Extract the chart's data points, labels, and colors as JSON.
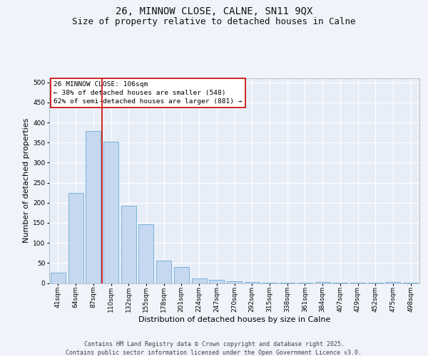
{
  "title_line1": "26, MINNOW CLOSE, CALNE, SN11 9QX",
  "title_line2": "Size of property relative to detached houses in Calne",
  "xlabel": "Distribution of detached houses by size in Calne",
  "ylabel": "Number of detached properties",
  "categories": [
    "41sqm",
    "64sqm",
    "87sqm",
    "110sqm",
    "132sqm",
    "155sqm",
    "178sqm",
    "201sqm",
    "224sqm",
    "247sqm",
    "270sqm",
    "292sqm",
    "315sqm",
    "338sqm",
    "361sqm",
    "384sqm",
    "407sqm",
    "429sqm",
    "452sqm",
    "475sqm",
    "498sqm"
  ],
  "values": [
    25,
    225,
    378,
    352,
    193,
    146,
    55,
    40,
    12,
    8,
    5,
    3,
    1,
    1,
    1,
    3,
    1,
    1,
    1,
    3,
    1
  ],
  "bar_color": "#c5d8f0",
  "bar_edgecolor": "#6aaad4",
  "bar_linewidth": 0.6,
  "vline_index": 3,
  "vline_color": "#cc0000",
  "vline_linewidth": 1.2,
  "annotation_line1": "26 MINNOW CLOSE: 106sqm",
  "annotation_line2": "← 38% of detached houses are smaller (548)",
  "annotation_line3": "62% of semi-detached houses are larger (881) →",
  "ylim": [
    0,
    510
  ],
  "yticks": [
    0,
    50,
    100,
    150,
    200,
    250,
    300,
    350,
    400,
    450,
    500
  ],
  "background_color": "#f0f4fa",
  "plot_background": "#e8eef8",
  "grid_color": "#ffffff",
  "footer_text": "Contains HM Land Registry data © Crown copyright and database right 2025.\nContains public sector information licensed under the Open Government Licence v3.0.",
  "title_fontsize": 10,
  "subtitle_fontsize": 9,
  "axis_label_fontsize": 8,
  "tick_fontsize": 6.5,
  "annotation_fontsize": 6.8,
  "footer_fontsize": 6
}
